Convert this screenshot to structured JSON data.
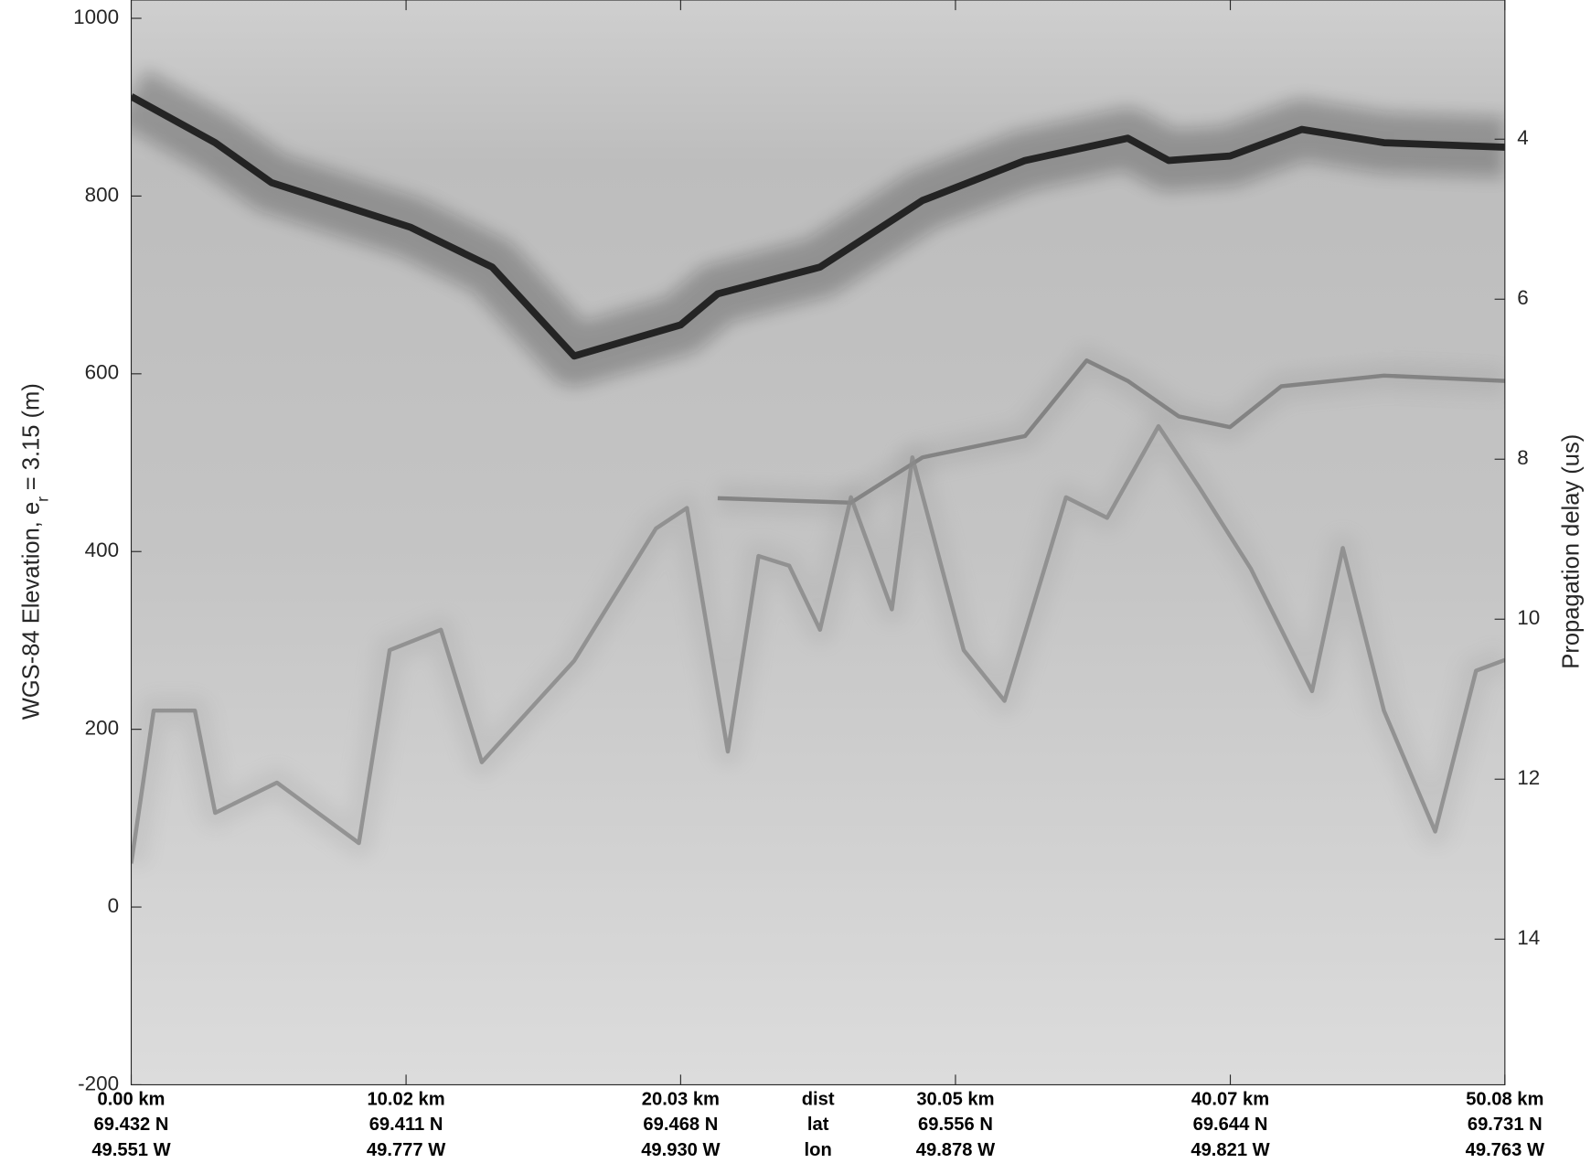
{
  "chart_data": {
    "type": "radargram",
    "ylabel": [
      "WGS-84 Elevation, e",
      "r",
      "= 3.15 (m)"
    ],
    "y2label": "Propagation delay (us)",
    "xlim": [
      0,
      50.08
    ],
    "xticks": [
      {
        "value": 0,
        "label": "0.00 km"
      },
      {
        "value": 10.02,
        "label": "10.02 km"
      },
      {
        "value": 20.03,
        "label": "20.03 km"
      },
      {
        "value": 30.05,
        "label": "30.05 km"
      },
      {
        "value": 40.07,
        "label": "40.07 km"
      },
      {
        "value": 50.08,
        "label": "50.08 km"
      }
    ],
    "lat_labels": [
      "69.432 N",
      "69.411 N",
      "69.468 N",
      "69.556 N",
      "69.644 N",
      "69.731 N"
    ],
    "lon_labels": [
      "49.551 W",
      "49.777 W",
      "49.930 W",
      "49.878 W",
      "49.821 W",
      "49.763 W"
    ],
    "row_labels": [
      "dist",
      "lat",
      "lon"
    ],
    "ylim": [
      -200,
      1020.6
    ],
    "yticks": [
      1000,
      800,
      600,
      400,
      200,
      0,
      -200
    ],
    "y2lim": [
      2.26,
      15.82
    ],
    "y2_reversed": true,
    "y2ticks": [
      4,
      6,
      8,
      10,
      12,
      14
    ],
    "traces": [
      {
        "color": "#111111",
        "x": [
          0,
          3.06,
          5.12,
          10.17,
          13.16,
          16.15,
          20.03,
          21.38,
          25.11,
          28.85,
          32.59,
          36.33,
          37.82,
          40.06,
          42.68,
          45.67,
          50.08
        ],
        "values": [
          912,
          860,
          815,
          765,
          720,
          620,
          655,
          690,
          720,
          795,
          840,
          865,
          840,
          845,
          875,
          860,
          855
        ]
      },
      {
        "color": "#7a7a7a",
        "x": [
          21.38,
          26.24,
          28.85,
          32.59,
          34.83,
          36.33,
          38.19,
          40.06,
          41.93,
          45.67,
          50.08
        ],
        "values": [
          460,
          455,
          506,
          530,
          615,
          592,
          552,
          540,
          586,
          598,
          592
        ]
      },
      {
        "color": "#8a8a8a",
        "x": [
          0,
          0.82,
          2.32,
          3.06,
          5.31,
          8.3,
          9.42,
          11.29,
          12.78,
          16.15,
          19.13,
          20.26,
          21.75,
          22.87,
          23.99,
          25.11,
          26.24,
          27.73,
          28.48,
          30.35,
          31.84,
          34.08,
          35.58,
          37.45,
          38.94,
          40.81,
          43.05,
          44.17,
          45.67,
          47.54,
          49.03,
          50.08
        ],
        "values": [
          49,
          221,
          221,
          106,
          140,
          72,
          289,
          312,
          163,
          277,
          426,
          449,
          175,
          395,
          384,
          312,
          461,
          335,
          506,
          289,
          232,
          461,
          438,
          541,
          472,
          381,
          243,
          404,
          221,
          85,
          266,
          278
        ]
      }
    ]
  }
}
